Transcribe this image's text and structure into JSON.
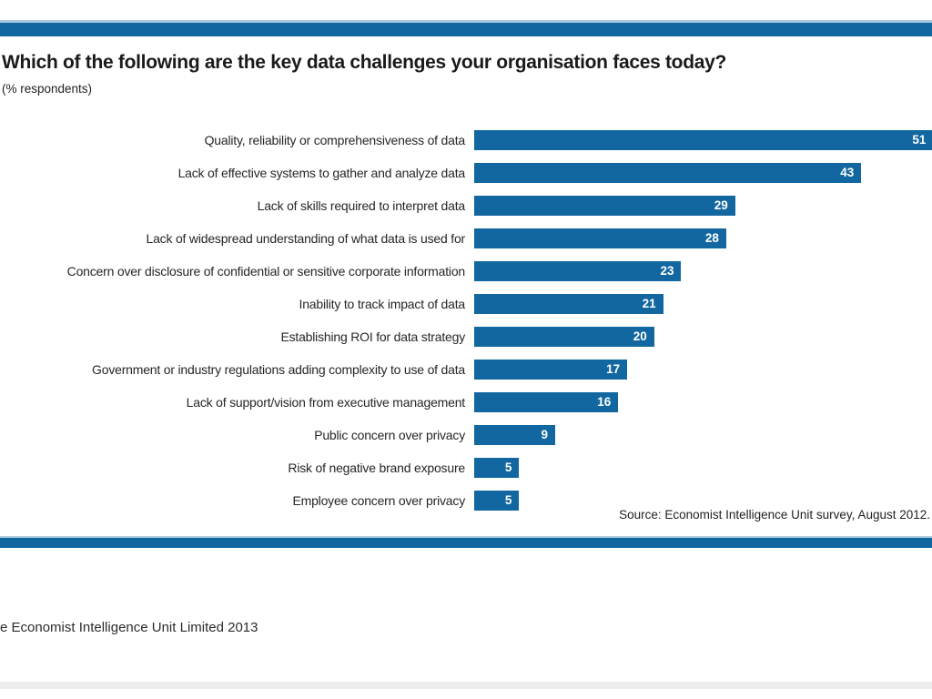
{
  "chart_data": {
    "type": "bar",
    "orientation": "horizontal",
    "title": "Which of the following are the key data challenges your organisation faces today?",
    "subtitle": "(% respondents)",
    "categories": [
      "Quality, reliability or comprehensiveness of data",
      "Lack of effective systems to gather and analyze data",
      "Lack of skills required to interpret data",
      "Lack of widespread understanding of what data is used for",
      "Concern over disclosure of confidential or sensitive corporate information",
      "Inability to track impact of data",
      "Establishing ROI for data strategy",
      "Government or industry regulations adding complexity to use of data",
      "Lack of support/vision from executive management",
      "Public concern over privacy",
      "Risk of negative brand exposure",
      "Employee concern over privacy"
    ],
    "values": [
      51,
      43,
      29,
      28,
      23,
      21,
      20,
      17,
      16,
      9,
      5,
      5
    ],
    "xlim": [
      0,
      51.5
    ],
    "grid": "off",
    "legend": "none",
    "value_labels": "inside-end",
    "bar_color": "#1267a0",
    "source": "Source: Economist Intelligence Unit survey, August 2012."
  },
  "footer": {
    "copyright": "e Economist Intelligence Unit Limited 2013"
  },
  "colors": {
    "accent_blue": "#1267a0",
    "rule_highlight": "#a9cade",
    "footer_band": "#ededed",
    "bar_value_text": "#ffffff"
  }
}
